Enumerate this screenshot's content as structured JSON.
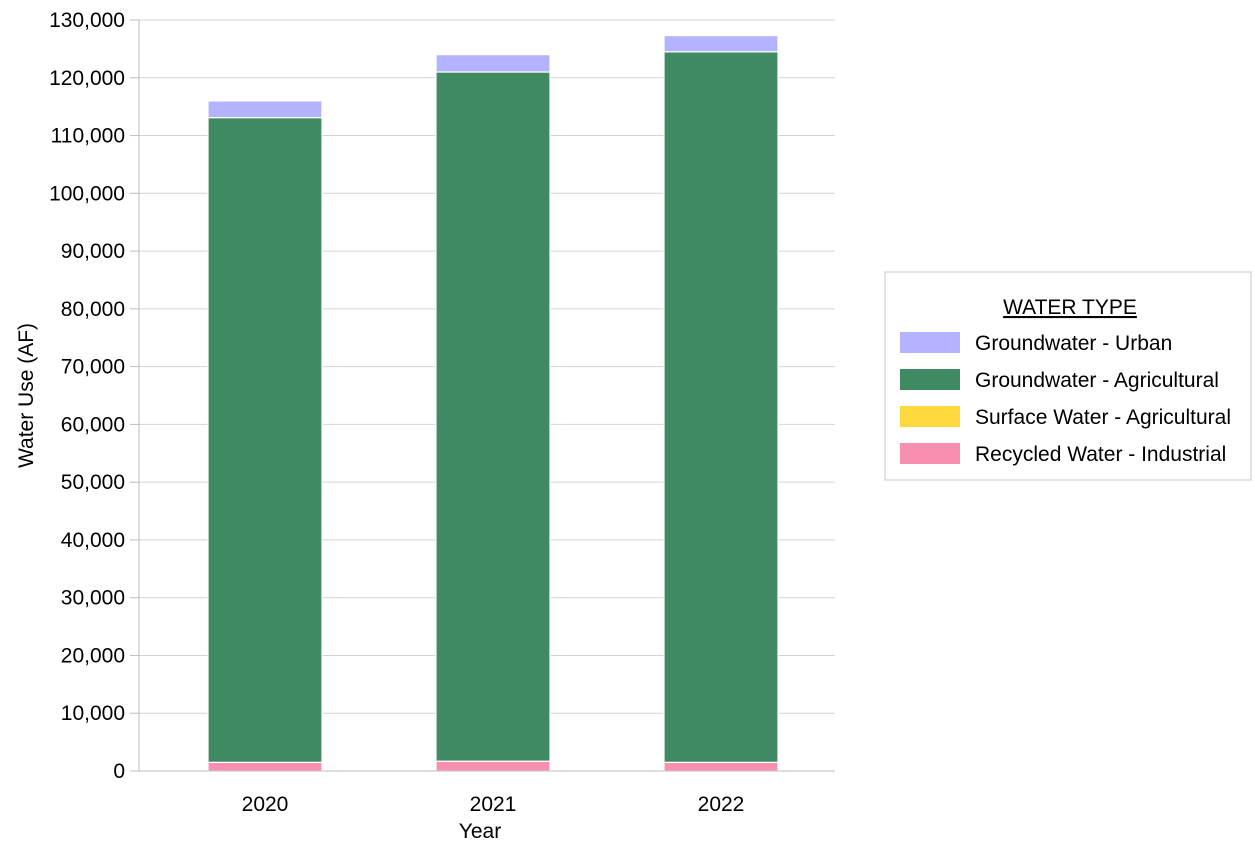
{
  "chart_data": {
    "type": "bar",
    "stacked": true,
    "categories": [
      "2020",
      "2021",
      "2022"
    ],
    "series": [
      {
        "name": "Recycled Water - Industrial",
        "values": [
          1500,
          1700,
          1500
        ],
        "color": "#f78fb0"
      },
      {
        "name": "Surface Water - Agricultural",
        "values": [
          0,
          0,
          0
        ],
        "color": "#ffd93d"
      },
      {
        "name": "Groundwater - Agricultural",
        "values": [
          111600,
          119300,
          123000
        ],
        "color": "#3f8a62"
      },
      {
        "name": "Groundwater - Urban",
        "values": [
          2900,
          3000,
          2800
        ],
        "color": "#b3b3ff"
      }
    ],
    "xlabel": "Year",
    "ylabel": "Water Use (AF)",
    "ylim": [
      0,
      130000
    ],
    "yticks": [
      "0",
      "10,000",
      "20,000",
      "30,000",
      "40,000",
      "50,000",
      "60,000",
      "70,000",
      "80,000",
      "90,000",
      "100,000",
      "110,000",
      "120,000",
      "130,000"
    ],
    "grid": true,
    "legend": {
      "title": "WATER TYPE",
      "position": "right",
      "order": [
        "Groundwater - Urban",
        "Groundwater - Agricultural",
        "Surface Water - Agricultural",
        "Recycled Water - Industrial"
      ]
    }
  }
}
